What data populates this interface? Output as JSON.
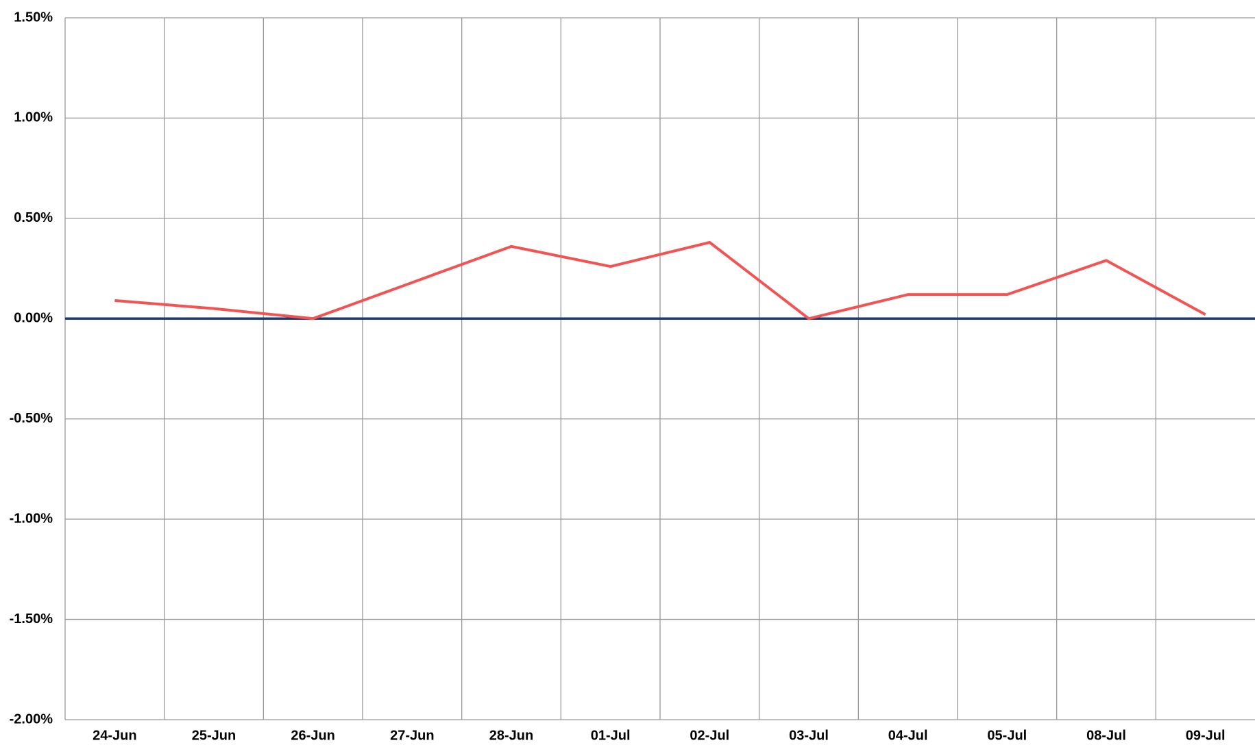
{
  "chart_data": {
    "type": "line",
    "categories": [
      "24-Jun",
      "25-Jun",
      "26-Jun",
      "27-Jun",
      "28-Jun",
      "01-Jul",
      "02-Jul",
      "03-Jul",
      "04-Jul",
      "05-Jul",
      "08-Jul",
      "09-Jul"
    ],
    "series": [
      {
        "color": "#f25353",
        "values": [
          0.09,
          0.05,
          0.0,
          0.18,
          0.36,
          0.26,
          0.38,
          0.0,
          0.12,
          0.12,
          0.29,
          0.02
        ]
      }
    ],
    "ylim": [
      -2.0,
      1.5
    ],
    "yticks": [
      {
        "value": -2.0,
        "label": "-2.00%"
      },
      {
        "value": -1.5,
        "label": "-1.50%"
      },
      {
        "value": -1.0,
        "label": "-1.00%"
      },
      {
        "value": -0.5,
        "label": "-0.50%"
      },
      {
        "value": 0.0,
        "label": "0.00%"
      },
      {
        "value": 0.5,
        "label": "0.50%"
      },
      {
        "value": 1.0,
        "label": "1.00%"
      },
      {
        "value": 1.5,
        "label": "1.50%"
      }
    ],
    "grid": true
  }
}
